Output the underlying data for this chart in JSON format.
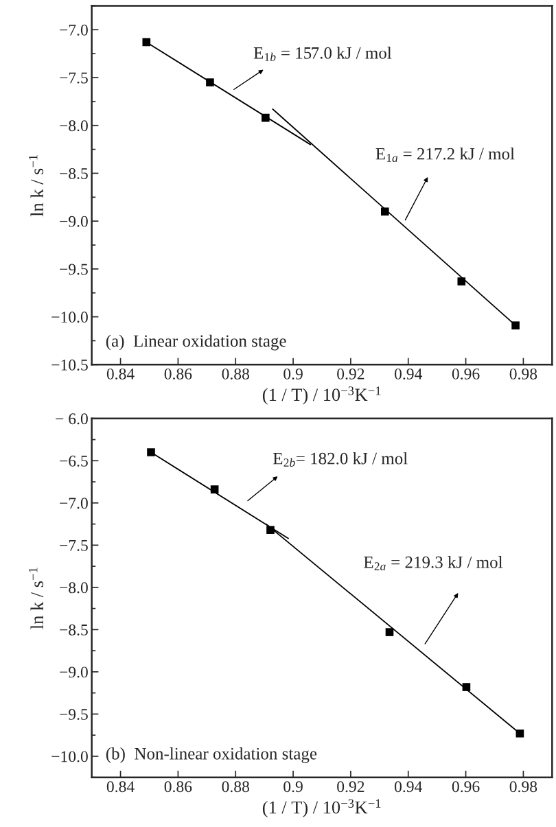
{
  "chart_data": [
    {
      "type": "scatter",
      "xlabel": "(1 / T) / 10$^{−3}$K$^{−1}$",
      "ylabel": "ln k / s$^{−1}$",
      "xlim": [
        0.83,
        0.99
      ],
      "ylim": [
        -10.5,
        -6.75
      ],
      "xticks": [
        0.84,
        0.86,
        0.88,
        0.9,
        0.92,
        0.94,
        0.96,
        0.98
      ],
      "yticks": [
        {
          "value": -7.0,
          "label": "−7.0"
        },
        {
          "value": -7.5,
          "label": "−7.5"
        },
        {
          "value": -8.0,
          "label": "−8.0"
        },
        {
          "value": -8.5,
          "label": "−8.5"
        },
        {
          "value": -9.0,
          "label": "−9.0"
        },
        {
          "value": -9.5,
          "label": "−9.5"
        },
        {
          "value": -10.0,
          "label": "−10.0"
        },
        {
          "value": -10.5,
          "label": "−10.5"
        }
      ],
      "grid": false,
      "legend": false,
      "series": [
        {
          "marker": "square",
          "color": "#000000",
          "x": [
            0.849,
            0.8711,
            0.8904,
            0.9319,
            0.9585,
            0.9773
          ],
          "values": [
            -7.13,
            -7.55,
            -7.92,
            -8.9,
            -9.63,
            -10.09
          ]
        },
        {
          "type": "line",
          "marker": "none",
          "line_style": "solid",
          "color": "#000000",
          "x": [
            0.849,
            0.906
          ],
          "values": [
            -7.13,
            -8.2
          ]
        },
        {
          "type": "line",
          "marker": "none",
          "line_style": "solid",
          "color": "#000000",
          "x": [
            0.8929,
            0.9773
          ],
          "values": [
            -7.83,
            -10.09
          ]
        }
      ],
      "annotations": [
        "E$_{1b}$ = 157.0 kJ / mol",
        "E$_{1a}$ = 217.2 kJ / mol",
        "(a)  Linear oxidation stage"
      ]
    },
    {
      "type": "scatter",
      "xlabel": "(1 / T) / 10$^{−3}$K$^{−1}$",
      "ylabel": "ln k / s$^{−1}$",
      "xlim": [
        0.83,
        0.99
      ],
      "ylim": [
        -10.25,
        -6.0
      ],
      "xticks": [
        0.84,
        0.86,
        0.88,
        0.9,
        0.92,
        0.94,
        0.96,
        0.98
      ],
      "yticks": [
        {
          "value": -6.0,
          "label": "− 6.0"
        },
        {
          "value": -6.5,
          "label": "−6.5"
        },
        {
          "value": -7.0,
          "label": "−7.0"
        },
        {
          "value": -7.5,
          "label": "−7.5"
        },
        {
          "value": -8.0,
          "label": "−8.0"
        },
        {
          "value": -8.5,
          "label": "−8.5"
        },
        {
          "value": -9.0,
          "label": "−9.0"
        },
        {
          "value": -9.5,
          "label": "−9.5"
        },
        {
          "value": -10.0,
          "label": "−10.0"
        }
      ],
      "grid": false,
      "legend": false,
      "series": [
        {
          "marker": "square",
          "color": "#000000",
          "x": [
            0.8506,
            0.8727,
            0.8921,
            0.9335,
            0.9602,
            0.9788
          ],
          "values": [
            -6.4,
            -6.84,
            -7.32,
            -8.53,
            -9.18,
            -9.73
          ]
        },
        {
          "type": "line",
          "marker": "none",
          "line_style": "solid",
          "color": "#000000",
          "x": [
            0.8506,
            0.8983
          ],
          "values": [
            -6.4,
            -7.42
          ]
        },
        {
          "type": "line",
          "marker": "none",
          "line_style": "solid",
          "color": "#000000",
          "x": [
            0.8906,
            0.9788
          ],
          "values": [
            -7.25,
            -9.73
          ]
        }
      ],
      "annotations": [
        "E$_{2b}$= 182.0 kJ / mol",
        "E$_{2a}$ = 219.3 kJ / mol",
        "(b)  Non-linear oxidation stage"
      ]
    }
  ]
}
